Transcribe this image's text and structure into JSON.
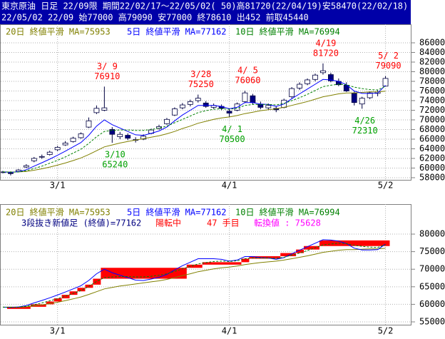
{
  "header": {
    "line1": "東京原油 日足 22/09限 期間22/02/17～22/05/02( 50)高81720(22/04/19)安58470(22/02/18)",
    "line2": "22/05/02 22/09 始77000 高79090 安77000 終78610 出452 前取45440"
  },
  "chart_data": [
    {
      "type": "candlestick",
      "categories": [
        null,
        null,
        null,
        null,
        null,
        null,
        null,
        "3/1",
        null,
        null,
        null,
        null,
        null,
        null,
        null,
        null,
        null,
        null,
        null,
        null,
        null,
        null,
        null,
        null,
        null,
        null,
        null,
        null,
        null,
        "4/1",
        null,
        null,
        null,
        null,
        null,
        null,
        null,
        null,
        null,
        null,
        null,
        null,
        null,
        null,
        null,
        null,
        null,
        null,
        null,
        "5/2"
      ],
      "open": [
        59100,
        59000,
        59300,
        60200,
        61500,
        62300,
        62800,
        63800,
        64800,
        65500,
        66300,
        68500,
        71500,
        72000,
        68000,
        66500,
        66800,
        65800,
        66000,
        67200,
        68200,
        69200,
        71000,
        72500,
        73200,
        74000,
        73500,
        72600,
        72800,
        71800,
        72000,
        73800,
        75000,
        73200,
        72500,
        72400,
        72600,
        74800,
        76600,
        77500,
        78400,
        79800,
        79400,
        78000,
        77200,
        75500,
        73300,
        74600,
        75500,
        77000
      ],
      "high": [
        59400,
        59300,
        59800,
        60800,
        62300,
        62800,
        63600,
        64600,
        65600,
        66500,
        67400,
        70500,
        73000,
        76910,
        68500,
        67500,
        67200,
        66400,
        67000,
        68200,
        69000,
        70400,
        72600,
        73500,
        74200,
        75250,
        73900,
        73400,
        73200,
        72300,
        73600,
        76060,
        75400,
        73800,
        73400,
        72900,
        74400,
        76800,
        77800,
        78600,
        79600,
        81720,
        79800,
        78600,
        77800,
        75900,
        74800,
        75900,
        76300,
        79090
      ],
      "low": [
        58900,
        58470,
        59200,
        60000,
        61200,
        61900,
        62600,
        63500,
        64600,
        65300,
        66100,
        68300,
        71200,
        71800,
        65240,
        66000,
        65800,
        65300,
        65800,
        67000,
        68000,
        69000,
        70800,
        72200,
        72800,
        73600,
        72500,
        72300,
        72000,
        70500,
        71800,
        73500,
        73200,
        72200,
        72100,
        71600,
        72400,
        74500,
        76200,
        77200,
        78000,
        79400,
        77800,
        77000,
        75800,
        73000,
        72310,
        74300,
        74900,
        77000
      ],
      "close": [
        59200,
        58900,
        59600,
        60500,
        62000,
        62400,
        63300,
        64300,
        65200,
        66200,
        67100,
        69800,
        72400,
        72500,
        67000,
        67000,
        66200,
        65900,
        66600,
        67900,
        68600,
        70100,
        72300,
        73100,
        73800,
        74500,
        72800,
        73000,
        72400,
        71400,
        73300,
        75600,
        73600,
        72600,
        73000,
        72100,
        74100,
        76500,
        77400,
        78300,
        79300,
        80200,
        78100,
        77300,
        76000,
        73600,
        74500,
        75600,
        75800,
        78610
      ],
      "up_color": "#ffffff",
      "down_color": "#000080",
      "series": [
        {
          "name": "20日 終値平滑 MA=75953",
          "color": "#808000",
          "values": [
            59200,
            59180,
            59200,
            59300,
            59550,
            59850,
            60200,
            60600,
            61050,
            61550,
            62100,
            62800,
            63600,
            64400,
            64800,
            65200,
            65500,
            65800,
            66100,
            66400,
            66700,
            67100,
            67600,
            68200,
            68700,
            69300,
            69700,
            70100,
            70400,
            70600,
            70900,
            71300,
            71600,
            71900,
            72100,
            72300,
            72600,
            73000,
            73400,
            73800,
            74300,
            74800,
            75100,
            75400,
            75600,
            75600,
            75700,
            75800,
            75800,
            75953
          ]
        },
        {
          "name": "5日 終値平滑 MA=77162",
          "color": "#0000ff",
          "values": [
            59200,
            59100,
            59250,
            59650,
            60400,
            61100,
            61850,
            62650,
            63500,
            64400,
            65300,
            66800,
            68700,
            70000,
            69000,
            68300,
            67600,
            66900,
            66800,
            67200,
            67700,
            68500,
            69800,
            71000,
            72000,
            73000,
            73000,
            73000,
            72800,
            72300,
            72600,
            73600,
            73600,
            73300,
            73200,
            72800,
            73300,
            74400,
            75400,
            76400,
            77400,
            78400,
            78300,
            78000,
            77300,
            76000,
            75500,
            75500,
            75600,
            77162
          ]
        },
        {
          "name": "10日 終値平滑 MA=76994",
          "color": "#008000",
          "dashed": true,
          "values": [
            59200,
            59150,
            59200,
            59450,
            59900,
            60400,
            61000,
            61600,
            62300,
            63100,
            63900,
            65100,
            66500,
            67600,
            67800,
            67900,
            67900,
            67800,
            67800,
            68000,
            68300,
            68700,
            69400,
            70100,
            70800,
            71500,
            71900,
            72200,
            72300,
            72200,
            72400,
            73000,
            73200,
            73200,
            73200,
            73100,
            73400,
            74000,
            74600,
            75300,
            76100,
            76900,
            77200,
            77400,
            77300,
            76800,
            76500,
            76300,
            76200,
            76994
          ]
        }
      ],
      "high_labels": [
        {
          "date": "3/ 9",
          "value": 76910
        },
        {
          "date": "3/28",
          "value": 75250
        },
        {
          "date": "4/ 5",
          "value": 76060
        },
        {
          "date": "4/19",
          "value": 81720
        },
        {
          "date": "5/ 2",
          "value": 79090
        }
      ],
      "high_label_color": "#ff0000",
      "low_labels": [
        {
          "date": "3/10",
          "value": 65240
        },
        {
          "date": "4/ 1",
          "value": 70500
        },
        {
          "date": "4/26",
          "value": 72310
        }
      ],
      "low_label_color": "#00a000",
      "ylim": [
        57550,
        89850
      ],
      "yticks": [
        58000,
        60000,
        62000,
        64000,
        66000,
        68000,
        70000,
        72000,
        74000,
        76000,
        78000,
        80000,
        82000,
        84000,
        86000
      ],
      "grid": true
    },
    {
      "type": "three-line-break",
      "categories": [
        null,
        null,
        null,
        null,
        null,
        null,
        null,
        "3/1",
        null,
        null,
        null,
        null,
        null,
        null,
        null,
        null,
        null,
        null,
        null,
        null,
        null,
        null,
        null,
        null,
        null,
        null,
        null,
        null,
        null,
        "4/1",
        null,
        null,
        null,
        null,
        null,
        null,
        null,
        null,
        null,
        null,
        null,
        null,
        null,
        null,
        null,
        null,
        null,
        null,
        null,
        "5/2"
      ],
      "brick_color": "#ff0000",
      "bricks": [
        {
          "from": 1,
          "to": 4,
          "low": 58700,
          "high": 59300
        },
        {
          "from": 4,
          "to": 6,
          "low": 59300,
          "high": 60000
        },
        {
          "from": 6,
          "to": 7,
          "low": 60000,
          "high": 60800
        },
        {
          "from": 7,
          "to": 8,
          "low": 60800,
          "high": 61700
        },
        {
          "from": 8,
          "to": 9,
          "low": 61700,
          "high": 62700
        },
        {
          "from": 9,
          "to": 10,
          "low": 62700,
          "high": 63700
        },
        {
          "from": 10,
          "to": 11,
          "low": 63700,
          "high": 64700
        },
        {
          "from": 11,
          "to": 12,
          "low": 64700,
          "high": 65600
        },
        {
          "from": 12,
          "to": 13,
          "low": 65600,
          "high": 67300
        },
        {
          "from": 13,
          "to": 24,
          "low": 67300,
          "high": 70400
        },
        {
          "from": 24,
          "to": 26,
          "low": 70400,
          "high": 71300
        },
        {
          "from": 26,
          "to": 31,
          "low": 71300,
          "high": 72000
        },
        {
          "from": 31,
          "to": 32,
          "low": 72000,
          "high": 73000
        },
        {
          "from": 32,
          "to": 36,
          "low": 73000,
          "high": 73700
        },
        {
          "from": 36,
          "to": 38,
          "low": 73700,
          "high": 74600
        },
        {
          "from": 38,
          "to": 39,
          "low": 74600,
          "high": 75600
        },
        {
          "from": 39,
          "to": 41,
          "low": 75600,
          "high": 76600
        },
        {
          "from": 41,
          "to": 50,
          "low": 76600,
          "high": 78200
        }
      ],
      "series": [
        {
          "name": "20日 終値平滑 MA=75953",
          "color": "#808000",
          "values": [
            59200,
            59180,
            59200,
            59300,
            59550,
            59850,
            60200,
            60600,
            61050,
            61550,
            62100,
            62800,
            63600,
            64400,
            64800,
            65200,
            65500,
            65800,
            66100,
            66400,
            66700,
            67100,
            67600,
            68200,
            68700,
            69300,
            69700,
            70100,
            70400,
            70600,
            70900,
            71300,
            71600,
            71900,
            72100,
            72300,
            72600,
            73000,
            73400,
            73800,
            74300,
            74800,
            75100,
            75400,
            75600,
            75600,
            75700,
            75800,
            75800,
            75953
          ]
        },
        {
          "name": "5日 終値平滑 MA=77162",
          "color": "#0000ff",
          "values": [
            59200,
            59100,
            59250,
            59650,
            60400,
            61100,
            61850,
            62650,
            63500,
            64400,
            65300,
            66800,
            68700,
            70000,
            69000,
            68300,
            67600,
            66900,
            66800,
            67200,
            67700,
            68500,
            69800,
            71000,
            72000,
            73000,
            73000,
            73000,
            72800,
            72300,
            72600,
            73600,
            73600,
            73300,
            73200,
            72800,
            73300,
            74400,
            75400,
            76400,
            77400,
            78400,
            78300,
            78000,
            77300,
            76000,
            75500,
            75500,
            75600,
            77162
          ]
        },
        {
          "name": "10日 終値平滑 MA=76994",
          "color": "#008000",
          "dashed": true,
          "values": [
            59200,
            59150,
            59200,
            59450,
            59900,
            60400,
            61000,
            61600,
            62300,
            63100,
            63900,
            65100,
            66500,
            67600,
            67800,
            67900,
            67900,
            67800,
            67800,
            68000,
            68300,
            68700,
            69400,
            70100,
            70800,
            71500,
            71900,
            72200,
            72300,
            72200,
            72400,
            73000,
            73200,
            73200,
            73200,
            73100,
            73400,
            74000,
            74600,
            75300,
            76100,
            76900,
            77200,
            77400,
            77300,
            76800,
            76500,
            76300,
            76200,
            76994
          ]
        }
      ],
      "info": [
        {
          "text": "3段抜き新値足 (終値)=77162",
          "color": "#000080"
        },
        {
          "text": "陽転中",
          "color": "#ff0000"
        },
        {
          "text": "47 手目",
          "color": "#ff0000"
        },
        {
          "text": "転換値 : 75628",
          "color": "#ff00ff"
        }
      ],
      "ylim": [
        54190,
        88540
      ],
      "yticks": [
        55000,
        60000,
        65000,
        70000,
        75000,
        80000
      ],
      "grid": true
    }
  ]
}
